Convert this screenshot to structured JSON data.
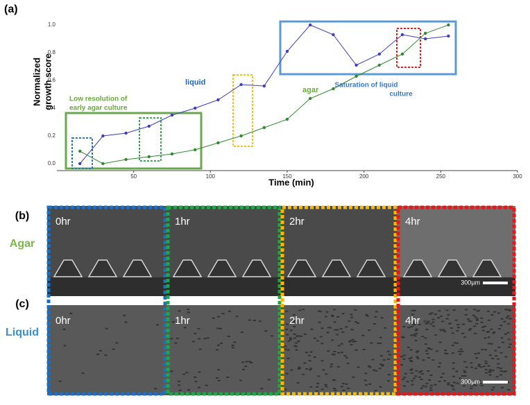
{
  "chart_data": {
    "type": "line",
    "panel_label": "(a)",
    "ylabel_lines": [
      "Normalized",
      "growth score"
    ],
    "xlabel": "Time (min)",
    "xlim": [
      0,
      300
    ],
    "xticks": [
      50,
      100,
      150,
      200,
      250,
      300
    ],
    "ylim": [
      -0.05,
      1.1
    ],
    "yticks": [
      {
        "value": 0,
        "label": "0.0"
      },
      0.2,
      0.4,
      0.6,
      0.8,
      {
        "value": 1,
        "label": "1.0"
      }
    ],
    "x": [
      15,
      30,
      45,
      60,
      75,
      90,
      105,
      120,
      135,
      150,
      165,
      180,
      195,
      210,
      225,
      240,
      255
    ],
    "series": [
      {
        "name": "liquid",
        "color": "#3c3cc4",
        "label_color": "#2266c4",
        "values": [
          0.0,
          0.2,
          0.22,
          0.27,
          0.35,
          0.4,
          0.46,
          0.57,
          0.56,
          0.81,
          1.0,
          0.93,
          0.71,
          0.79,
          0.93,
          0.9,
          0.92
        ]
      },
      {
        "name": "agar",
        "color": "#2e8a2e",
        "label_color": "#6aaa3a",
        "values": [
          0.09,
          0.0,
          0.03,
          0.05,
          0.07,
          0.1,
          0.15,
          0.2,
          0.26,
          0.32,
          0.47,
          0.54,
          0.63,
          0.71,
          0.79,
          0.94,
          1.0
        ]
      }
    ],
    "annotations": [
      {
        "lines": [
          "Low resolution of",
          "early agar culture"
        ],
        "color": "#6aaa3a"
      },
      {
        "lines": [
          "Saturation  of liquid",
          "culture"
        ],
        "color": "#3b78c4"
      }
    ]
  },
  "panels": {
    "label_b": "(b)",
    "label_c": "(c)",
    "row_agar": "Agar",
    "row_liquid": "Liquid",
    "times": [
      "0hr",
      "1hr",
      "2hr",
      "4hr"
    ],
    "scale_bar": "300µm"
  }
}
